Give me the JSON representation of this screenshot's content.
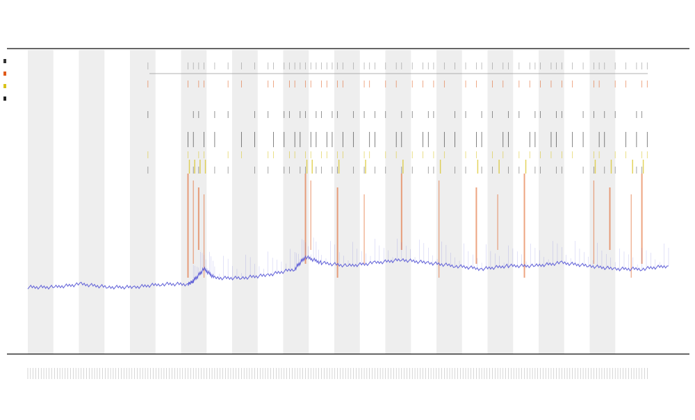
{
  "chart_data": {
    "type": "line",
    "title_lines": [
      "",
      "",
      ""
    ],
    "xlabel": "",
    "ylabel": "",
    "legend": {
      "placement": "top-left",
      "entries": [
        {
          "name": "",
          "color": "#333333"
        },
        {
          "name": "",
          "color": "#e05a1a"
        },
        {
          "name": "",
          "color": "#d8c21a"
        },
        {
          "name": "",
          "color": "#222222"
        }
      ]
    },
    "grid": false,
    "shaded_bands": 12,
    "series": [
      {
        "name": "",
        "kind": "line",
        "color": "#5a5ad6",
        "x": [
          0,
          10,
          20,
          30,
          40,
          50,
          60,
          62,
          66,
          70,
          80,
          90,
          100,
          104,
          110,
          120,
          130,
          140,
          150,
          160,
          170,
          180,
          190,
          200,
          210,
          220,
          230,
          240
        ],
        "y": [
          0.22,
          0.22,
          0.23,
          0.22,
          0.22,
          0.23,
          0.23,
          0.24,
          0.28,
          0.25,
          0.25,
          0.26,
          0.28,
          0.32,
          0.3,
          0.29,
          0.3,
          0.31,
          0.3,
          0.29,
          0.28,
          0.29,
          0.29,
          0.3,
          0.29,
          0.28,
          0.28,
          0.29
        ]
      }
    ],
    "event_tracks": [
      {
        "name": "",
        "color": "#888888"
      },
      {
        "name": "",
        "color": "#e05a1a"
      },
      {
        "name": "",
        "color": "#333333"
      },
      {
        "name": "",
        "color": "#111111"
      },
      {
        "name": "",
        "color": "#d8c21a"
      },
      {
        "name": "",
        "color": "#555555"
      }
    ],
    "event_positions": [
      45,
      60,
      62,
      64,
      66,
      70,
      75,
      80,
      85,
      90,
      92,
      96,
      98,
      100,
      102,
      104,
      106,
      108,
      110,
      112,
      114,
      116,
      118,
      122,
      126,
      128,
      130,
      134,
      138,
      140,
      144,
      148,
      150,
      152,
      156,
      160,
      164,
      168,
      170,
      174,
      178,
      180,
      184,
      188,
      190,
      192,
      196,
      198,
      200,
      204,
      208,
      212,
      214,
      216,
      220,
      224,
      228,
      230,
      232
    ],
    "hot_positions": [
      60,
      62,
      64,
      66,
      104,
      106,
      116,
      126,
      140,
      154,
      168,
      176,
      186,
      212,
      218,
      226,
      230
    ],
    "xlim": [
      0,
      240
    ],
    "ylim": [
      0,
      1
    ],
    "colors": {
      "accent": "#5a5ad6",
      "band": "#eeeeee",
      "axis": "#333333",
      "hot": "#e05a1a",
      "warm": "#d8c21a"
    }
  }
}
